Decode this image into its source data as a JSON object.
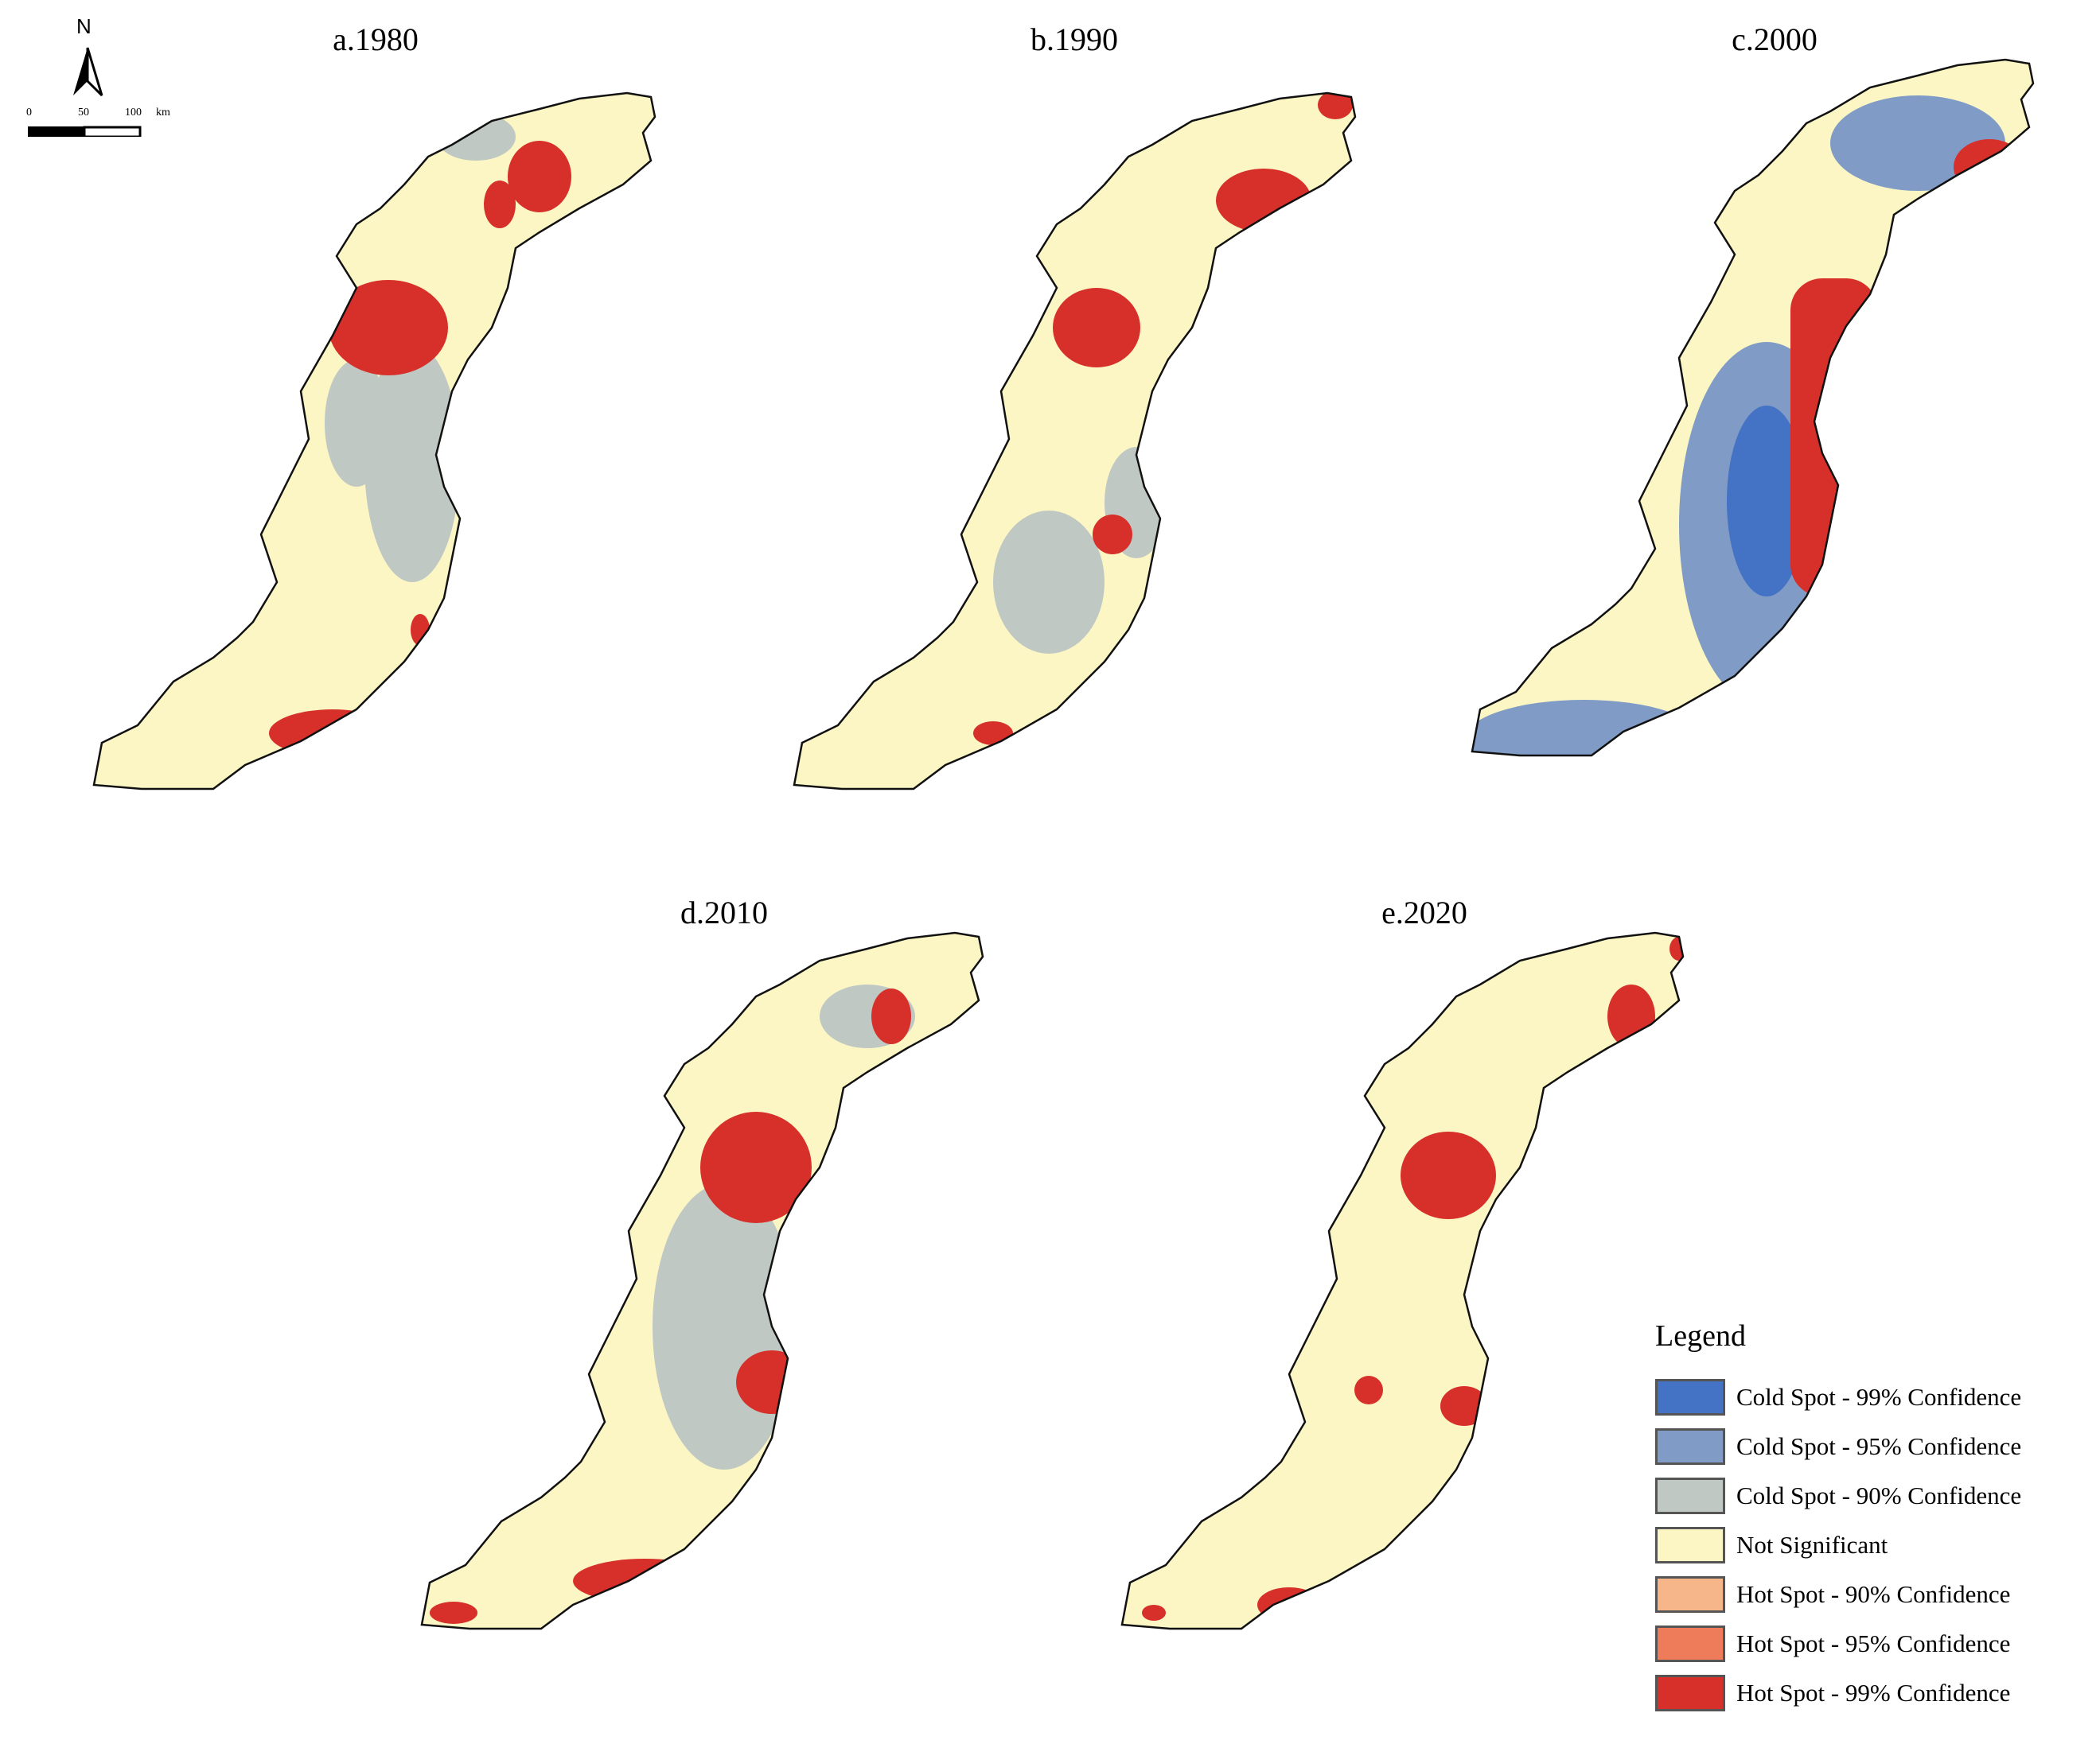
{
  "panels": [
    {
      "title": "a.1980"
    },
    {
      "title": "b.1990"
    },
    {
      "title": "c.2000"
    },
    {
      "title": "d.2010"
    },
    {
      "title": "e.2020"
    }
  ],
  "north_arrow": {
    "label": "N"
  },
  "scale_bar": {
    "ticks": [
      "0",
      "50",
      "100"
    ],
    "unit": "km"
  },
  "legend": {
    "title": "Legend",
    "items": [
      {
        "label": "Cold Spot - 99% Confidence",
        "color": "#4472c4"
      },
      {
        "label": "Cold Spot - 95% Confidence",
        "color": "#7f9bc6"
      },
      {
        "label": "Cold Spot - 90% Confidence",
        "color": "#bfc8c3"
      },
      {
        "label": "Not Significant",
        "color": "#fbf6c4"
      },
      {
        "label": "Hot Spot - 90% Confidence",
        "color": "#f7b68a"
      },
      {
        "label": "Hot Spot - 95% Confidence",
        "color": "#ee7b59"
      },
      {
        "label": "Hot Spot - 99% Confidence",
        "color": "#d7302a"
      }
    ]
  }
}
